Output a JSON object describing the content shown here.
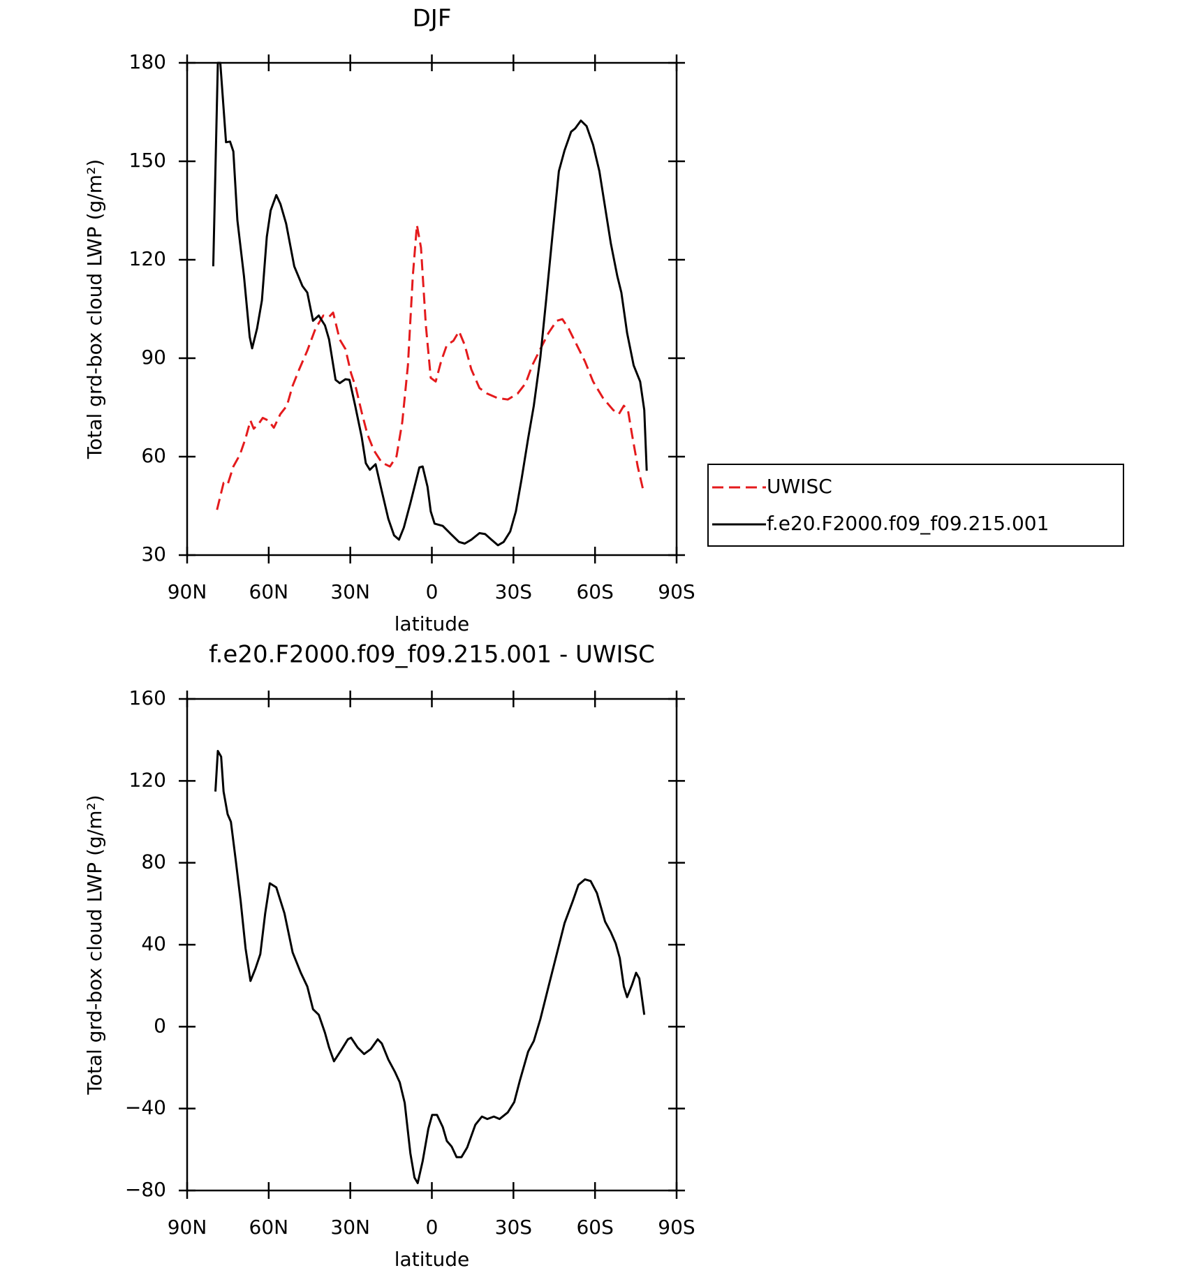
{
  "chart_data": [
    {
      "type": "line",
      "title": "DJF",
      "xlabel": "latitude",
      "ylabel": "Total grd-box cloud LWP (g/m²)",
      "xlim": [
        90,
        -90
      ],
      "xticks": [
        {
          "value": 90,
          "label": "90N"
        },
        {
          "value": 60,
          "label": "60N"
        },
        {
          "value": 30,
          "label": "30N"
        },
        0,
        {
          "value": -30,
          "label": "30S"
        },
        {
          "value": -60,
          "label": "60S"
        },
        {
          "value": -90,
          "label": "90S"
        }
      ],
      "ylim": [
        30,
        180
      ],
      "yticks": [
        30,
        60,
        90,
        120,
        150,
        180
      ],
      "legend": "right",
      "series": [
        {
          "name": "UWISC",
          "color": "#e41a1c",
          "dashed": true,
          "x": [
            79,
            76.6,
            75.1,
            73,
            70.6,
            68.5,
            66.7,
            65.5,
            63.7,
            62.2,
            60.1,
            58.1,
            55.7,
            53.3,
            51.2,
            48.8,
            45.8,
            42.8,
            39.9,
            37.8,
            36.3,
            33.9,
            31.8,
            29.7,
            27.9,
            25.8,
            23.7,
            21.3,
            18.4,
            15.4,
            13,
            10.9,
            8.8,
            7,
            5.5,
            4,
            2.2,
            0.4,
            -1.4,
            -3.4,
            -5.5,
            -7.9,
            -10,
            -12.1,
            -14.5,
            -17.5,
            -20.4,
            -24,
            -27.9,
            -31.5,
            -34.5,
            -36.9,
            -39.9,
            -42.9,
            -45.9,
            -48,
            -50.3,
            -53.3,
            -56.3,
            -59.3,
            -62.9,
            -66.7,
            -68.8,
            -70.6,
            -72.1,
            -73.6,
            -75.7,
            -77.8
          ],
          "values": [
            43.8,
            52,
            51.5,
            57,
            60.6,
            65.6,
            71,
            68.5,
            70,
            71.8,
            71,
            68.8,
            73,
            75.5,
            81.6,
            86.6,
            92.3,
            99,
            103,
            102.6,
            103.9,
            95.7,
            92.8,
            85.4,
            80.9,
            73.5,
            66.8,
            61.9,
            58.2,
            57,
            60.1,
            70.5,
            87.8,
            115,
            130.6,
            123.7,
            100,
            84,
            82.9,
            89,
            94,
            95.3,
            98.2,
            94,
            86.6,
            80.9,
            79.2,
            77.9,
            77.4,
            79.2,
            82.4,
            87.8,
            92.8,
            97.7,
            101.4,
            101.9,
            99,
            94,
            89,
            82.9,
            77.9,
            74.2,
            73,
            75.5,
            74.2,
            66.8,
            57,
            49.5
          ]
        },
        {
          "name": "f.e20.F2000.f09_f09.215.001",
          "color": "#000000",
          "dashed": false,
          "x": [
            80.4,
            78.7,
            77.8,
            75.7,
            74.2,
            73,
            71.5,
            69.1,
            67,
            66.1,
            64.3,
            62.5,
            60.7,
            59.3,
            57.2,
            55.7,
            53.6,
            50.6,
            47.6,
            45.8,
            43.7,
            41.6,
            39.3,
            37.8,
            35.4,
            33.9,
            31.8,
            30.3,
            28.2,
            25.8,
            24.3,
            22.8,
            20.7,
            18.4,
            16,
            13.9,
            12.1,
            10.3,
            7.9,
            6.4,
            4.6,
            3.4,
            1.6,
            0.4,
            -1,
            -4,
            -7,
            -10,
            -12.1,
            -14.5,
            -17.5,
            -19.6,
            -21.9,
            -24.3,
            -26.4,
            -28.8,
            -30.9,
            -33,
            -35.4,
            -37.5,
            -39.9,
            -42,
            -44.3,
            -46.7,
            -48.8,
            -51.2,
            -52.7,
            -54.8,
            -56.9,
            -59.3,
            -61.6,
            -63.7,
            -65.8,
            -68.2,
            -69.7,
            -71.8,
            -74.2,
            -76.6,
            -78.1,
            -79
          ],
          "values": [
            118,
            180,
            180,
            155.8,
            156,
            153,
            132,
            115,
            96.5,
            93,
            99,
            107.6,
            127,
            135,
            139.7,
            137,
            131,
            118,
            112,
            110,
            101.4,
            103,
            100,
            95.7,
            83.4,
            82.4,
            83.6,
            83.4,
            75.5,
            66,
            58,
            56,
            57.7,
            49.5,
            41,
            36,
            34.7,
            38.4,
            45.8,
            50.8,
            56.7,
            57,
            50.8,
            43.3,
            39.6,
            38.9,
            36.4,
            34,
            33.5,
            34.7,
            36.7,
            36.4,
            34.7,
            33,
            34,
            37.2,
            43.3,
            53.2,
            65.6,
            75.5,
            90.3,
            107.6,
            127,
            147,
            153.3,
            159,
            160,
            162.4,
            160.7,
            155,
            147,
            136,
            125,
            115,
            110,
            97.7,
            87.8,
            82.9,
            74.2,
            55.7
          ]
        }
      ]
    },
    {
      "type": "line",
      "title": "f.e20.F2000.f09_f09.215.001 - UWISC",
      "xlabel": "latitude",
      "ylabel": "Total grd-box cloud LWP (g/m²)",
      "xlim": [
        90,
        -90
      ],
      "xticks": [
        {
          "value": 90,
          "label": "90N"
        },
        {
          "value": 60,
          "label": "60N"
        },
        {
          "value": 30,
          "label": "30N"
        },
        0,
        {
          "value": -30,
          "label": "30S"
        },
        {
          "value": -60,
          "label": "60S"
        },
        {
          "value": -90,
          "label": "90S"
        }
      ],
      "ylim": [
        -80,
        160
      ],
      "yticks": [
        {
          "value": -80,
          "label": "−80"
        },
        {
          "value": -40,
          "label": "−40"
        },
        0,
        40,
        80,
        120,
        160
      ],
      "series": [
        {
          "color": "#000000",
          "dashed": false,
          "x": [
            79.6,
            78.7,
            77.5,
            76.6,
            75.1,
            73.9,
            72.1,
            70.3,
            68.5,
            66.7,
            64.9,
            63.1,
            61.3,
            59.6,
            57.2,
            54.2,
            51.2,
            48.2,
            45.8,
            43.7,
            41.6,
            39.3,
            37.8,
            36,
            33.3,
            30.9,
            29.7,
            27.3,
            24.9,
            22.5,
            19.9,
            18.4,
            16,
            13.6,
            11.8,
            10,
            7.9,
            6.4,
            5.2,
            3.4,
            1.3,
            -0.1,
            -1.9,
            -4,
            -5.5,
            -7.3,
            -9.1,
            -10.9,
            -13,
            -16,
            -18.4,
            -20.4,
            -22.8,
            -24.9,
            -27.9,
            -30.3,
            -32.4,
            -35.4,
            -37.5,
            -39.9,
            -42.9,
            -45.9,
            -48.8,
            -51.8,
            -53.9,
            -56.3,
            -58.4,
            -60.7,
            -63.7,
            -65.8,
            -67.6,
            -69.1,
            -70.6,
            -71.8,
            -73.6,
            -75.1,
            -76.3,
            -78.1
          ],
          "values": [
            114.8,
            134.6,
            131.8,
            114.8,
            103.7,
            100,
            81,
            61.2,
            38.2,
            22.3,
            28.3,
            35.4,
            55.3,
            70,
            68,
            55.3,
            36.2,
            26.3,
            19.6,
            8.5,
            5.8,
            -3,
            -10.2,
            -16.9,
            -11.4,
            -6.2,
            -5.4,
            -10.2,
            -13.4,
            -11,
            -6.2,
            -8.2,
            -16.1,
            -22,
            -27.2,
            -37.2,
            -61.8,
            -73.7,
            -76.4,
            -65.7,
            -49.9,
            -43.1,
            -43.1,
            -49,
            -55.8,
            -58.6,
            -63.7,
            -63.7,
            -59,
            -47.9,
            -43.9,
            -45.1,
            -43.9,
            -45.1,
            -41.9,
            -36.8,
            -26.1,
            -12.2,
            -7,
            3.7,
            19.6,
            35.4,
            50.5,
            61.2,
            69.2,
            71.9,
            71.1,
            65.2,
            51.3,
            46.1,
            40.6,
            33.5,
            19.6,
            14.4,
            20.4,
            26.3,
            23.5,
            5.8
          ]
        }
      ]
    }
  ]
}
